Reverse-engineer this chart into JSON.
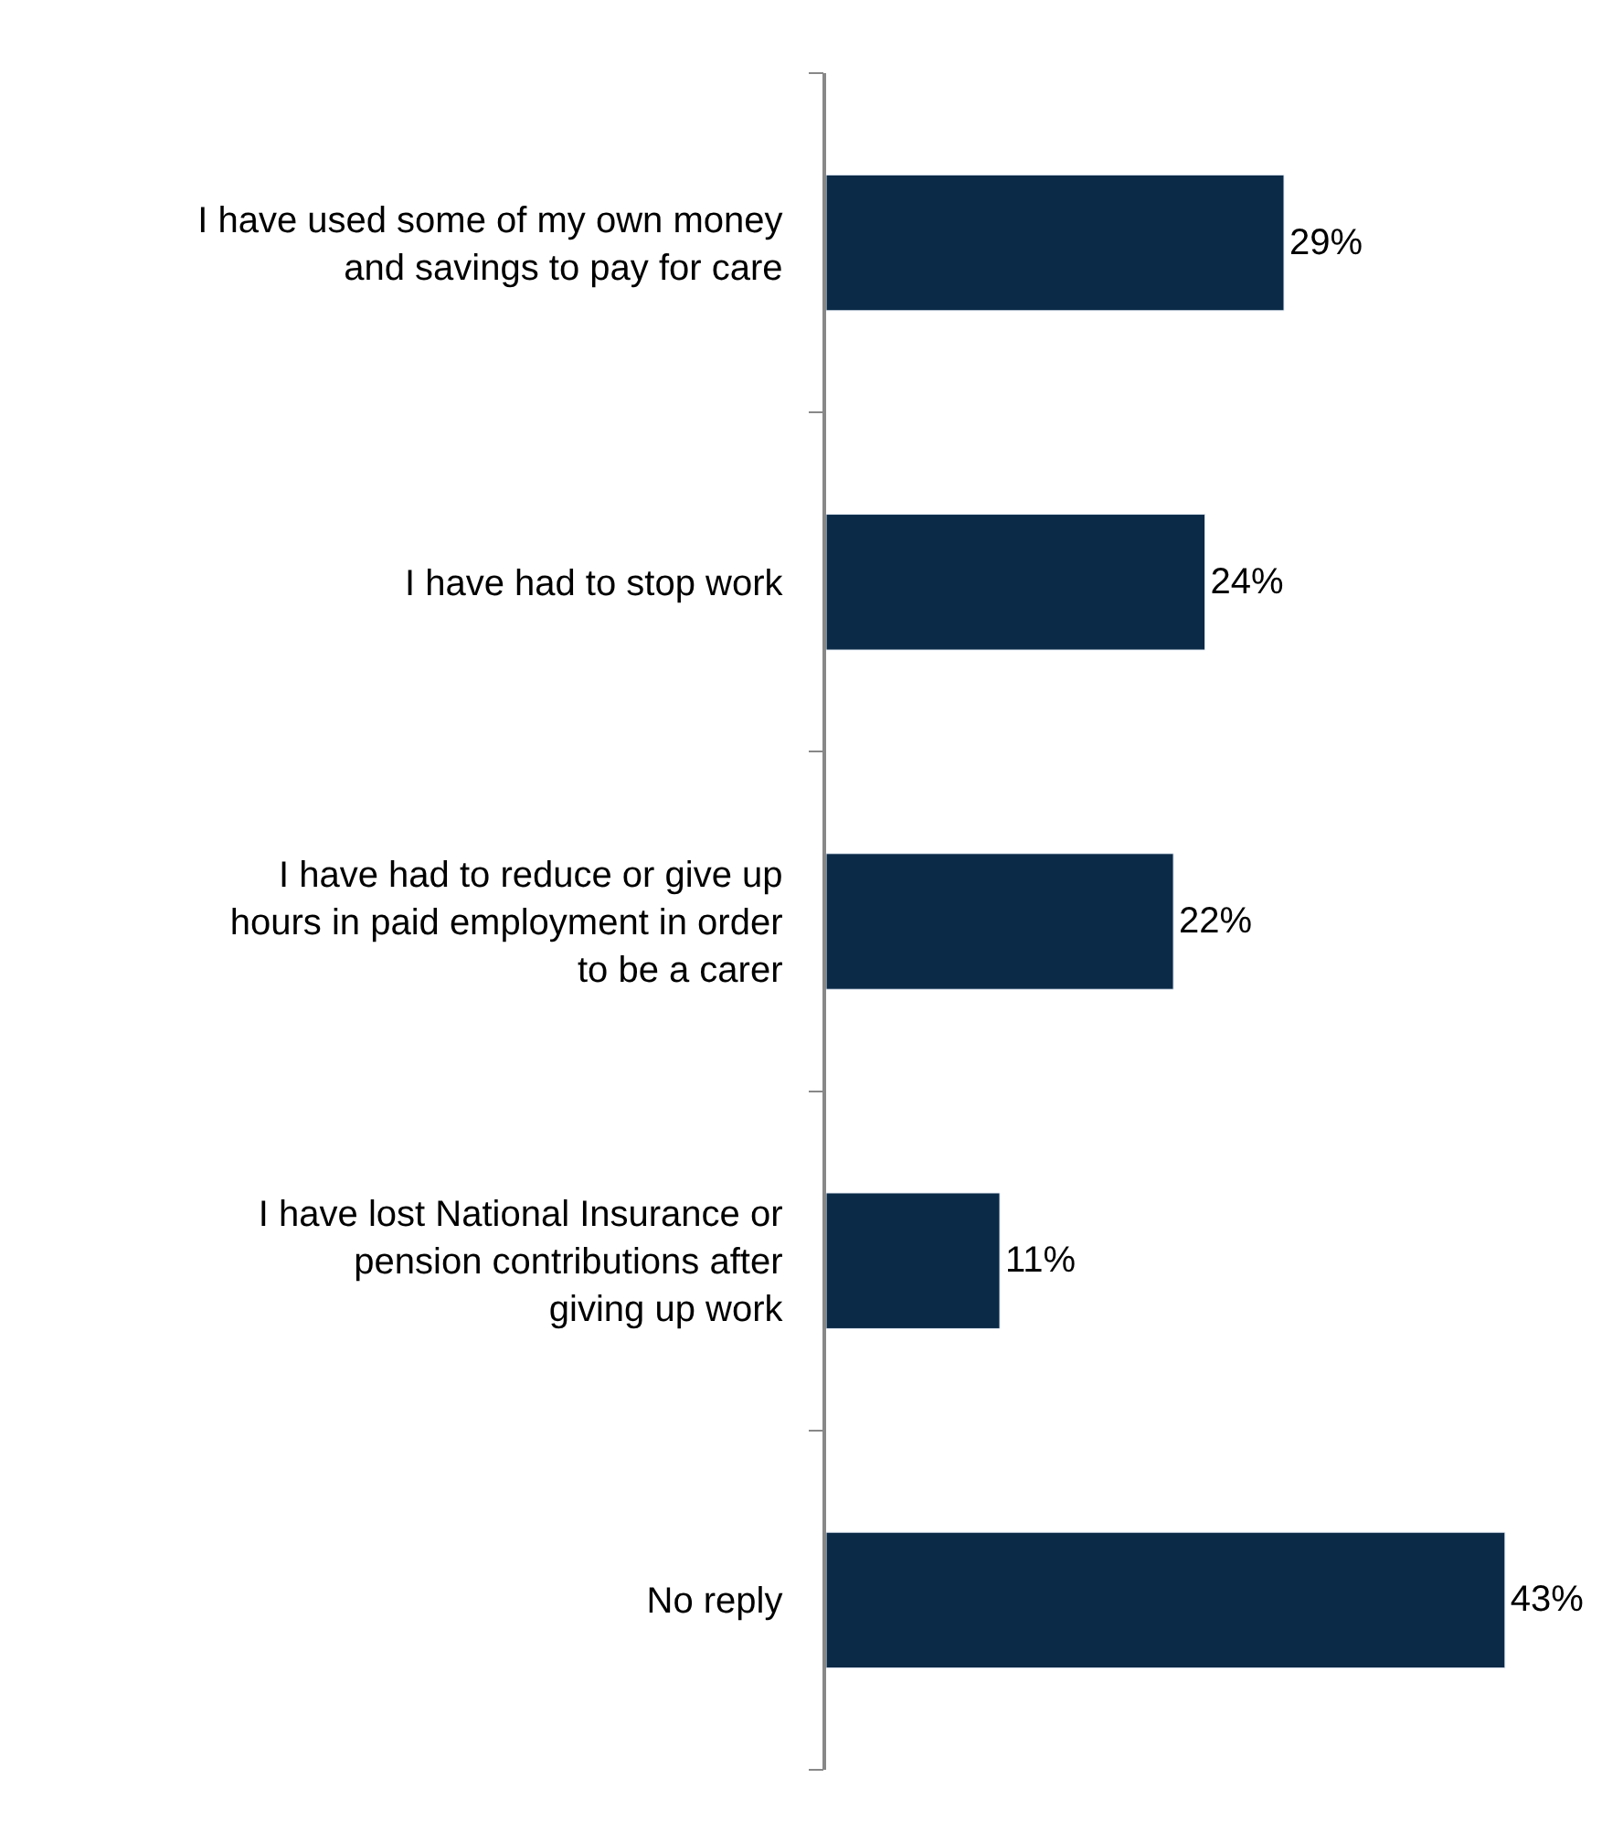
{
  "chart_data": {
    "type": "bar",
    "orientation": "horizontal",
    "categories": [
      "I have used some of my own money and savings to pay for care",
      "I have had to stop work",
      "I have had to reduce or give up hours in paid employment in order to be a carer",
      "I have lost National Insurance or pension contributions after giving up work",
      "No reply"
    ],
    "values": [
      29,
      24,
      22,
      11,
      43
    ],
    "value_labels": [
      "29%",
      "24%",
      "22%",
      "11%",
      "43%"
    ],
    "color": "#0a2a47",
    "legend": false
  }
}
